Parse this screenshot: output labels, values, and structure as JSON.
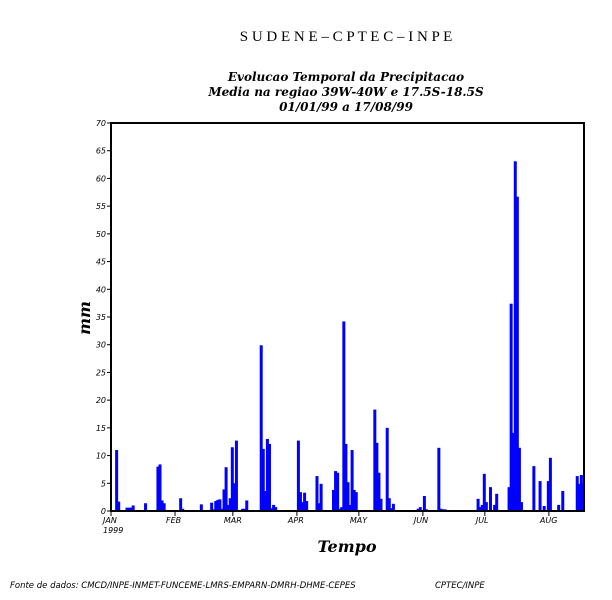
{
  "header": "S U D E N E – C P T E C – I N P E",
  "footer": {
    "source": "Fonte de dados: CMCD/INPE-INMET-FUNCEME-LMRS-EMPARN-DMRH-DHME-CEPES",
    "credit": "CPTEC/INPE"
  },
  "chart_data": {
    "type": "bar",
    "title": [
      "Evolucao Temporal da Precipitacao",
      "Media na regiao 39W-40W  e 17.5S-18.5S",
      "01/01/99 a 17/08/99"
    ],
    "xlabel": "Tempo",
    "ylabel": "mm",
    "ylim": [
      0,
      70
    ],
    "yticks": [
      0,
      5,
      10,
      15,
      20,
      25,
      30,
      35,
      40,
      45,
      50,
      55,
      60,
      65,
      70
    ],
    "xlim_days": [
      0,
      229
    ],
    "xticks": [
      {
        "label": "JAN",
        "sub": "1999",
        "day": 0
      },
      {
        "label": "FEB",
        "day": 31
      },
      {
        "label": "MAR",
        "day": 59
      },
      {
        "label": "APR",
        "day": 90
      },
      {
        "label": "MAY",
        "day": 120
      },
      {
        "label": "JUN",
        "day": 151
      },
      {
        "label": "JUL",
        "day": 181
      },
      {
        "label": "AUG",
        "day": 212
      }
    ],
    "bar_color": "#0000ff",
    "series": [
      {
        "name": "daily precipitation (mm)",
        "days_since_jan1": [
          2,
          3,
          7,
          8,
          9,
          10,
          16,
          22,
          23,
          24,
          25,
          33,
          34,
          43,
          48,
          49,
          50,
          51,
          52,
          53,
          54,
          55,
          56,
          57,
          58,
          59,
          60,
          63,
          64,
          65,
          72,
          73,
          74,
          75,
          76,
          77,
          78,
          79,
          90,
          91,
          92,
          93,
          94,
          99,
          100,
          101,
          107,
          108,
          109,
          110,
          111,
          112,
          113,
          114,
          115,
          116,
          117,
          118,
          127,
          128,
          129,
          130,
          133,
          134,
          135,
          136,
          148,
          149,
          151,
          152,
          158,
          159,
          160,
          161,
          177,
          178,
          179,
          180,
          181,
          183,
          185,
          186,
          192,
          193,
          194,
          195,
          196,
          197,
          198,
          204,
          207,
          209,
          211,
          212,
          216,
          218,
          225,
          226,
          227,
          228
        ],
        "values": [
          11,
          1.7,
          0.6,
          0.6,
          0.6,
          1,
          1.4,
          8,
          8.4,
          1.9,
          1.4,
          2.3,
          0.4,
          1.2,
          1.5,
          0.3,
          1.8,
          2,
          2.1,
          0.4,
          3.9,
          7.9,
          1.1,
          2.3,
          11.5,
          5,
          12.7,
          0.4,
          0.4,
          1.9,
          29.9,
          11.2,
          3.6,
          13,
          12.1,
          0.5,
          1.1,
          0.7,
          12.7,
          3.4,
          1.6,
          3.3,
          1.8,
          6.3,
          1.4,
          4.9,
          3.8,
          7.2,
          6.9,
          0.4,
          0.7,
          34.2,
          12.1,
          5.2,
          1.1,
          11,
          3.8,
          3.4,
          18.3,
          12.3,
          6.9,
          2.2,
          15,
          2.3,
          0.5,
          1.3,
          0.4,
          0.7,
          2.7,
          0.3,
          11.4,
          0.4,
          0.3,
          0.3,
          2.2,
          0.7,
          1.1,
          6.7,
          1.6,
          4.3,
          1.1,
          3.1,
          4.3,
          37.4,
          14.1,
          63.1,
          56.7,
          11.4,
          1.6,
          8.1,
          5.4,
          0.9,
          5.4,
          9.6,
          1.1,
          3.6,
          6.3,
          4.9,
          6.5,
          5
        ]
      }
    ]
  }
}
